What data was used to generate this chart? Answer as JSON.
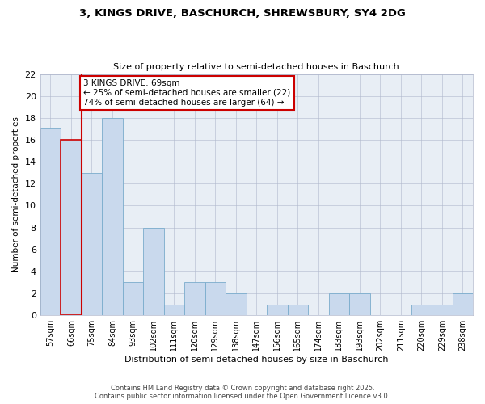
{
  "title1": "3, KINGS DRIVE, BASCHURCH, SHREWSBURY, SY4 2DG",
  "title2": "Size of property relative to semi-detached houses in Baschurch",
  "xlabel": "Distribution of semi-detached houses by size in Baschurch",
  "ylabel": "Number of semi-detached properties",
  "categories": [
    "57sqm",
    "66sqm",
    "75sqm",
    "84sqm",
    "93sqm",
    "102sqm",
    "111sqm",
    "120sqm",
    "129sqm",
    "138sqm",
    "147sqm",
    "156sqm",
    "165sqm",
    "174sqm",
    "183sqm",
    "193sqm",
    "202sqm",
    "211sqm",
    "220sqm",
    "229sqm",
    "238sqm"
  ],
  "values": [
    17,
    16,
    13,
    18,
    3,
    8,
    1,
    3,
    3,
    2,
    0,
    1,
    1,
    0,
    2,
    2,
    0,
    0,
    1,
    1,
    2
  ],
  "bar_color": "#c9d9ed",
  "bar_edge_color": "#7aaccc",
  "highlight_bar_index": 1,
  "highlight_edge_color": "#cc0000",
  "vline_color": "#cc0000",
  "annotation_text": "3 KINGS DRIVE: 69sqm\n← 25% of semi-detached houses are smaller (22)\n74% of semi-detached houses are larger (64) →",
  "annotation_box_color": "#ffffff",
  "annotation_box_edge": "#cc0000",
  "ylim": [
    0,
    22
  ],
  "yticks": [
    0,
    2,
    4,
    6,
    8,
    10,
    12,
    14,
    16,
    18,
    20,
    22
  ],
  "bg_color": "#e8eef5",
  "footer1": "Contains HM Land Registry data © Crown copyright and database right 2025.",
  "footer2": "Contains public sector information licensed under the Open Government Licence v3.0."
}
